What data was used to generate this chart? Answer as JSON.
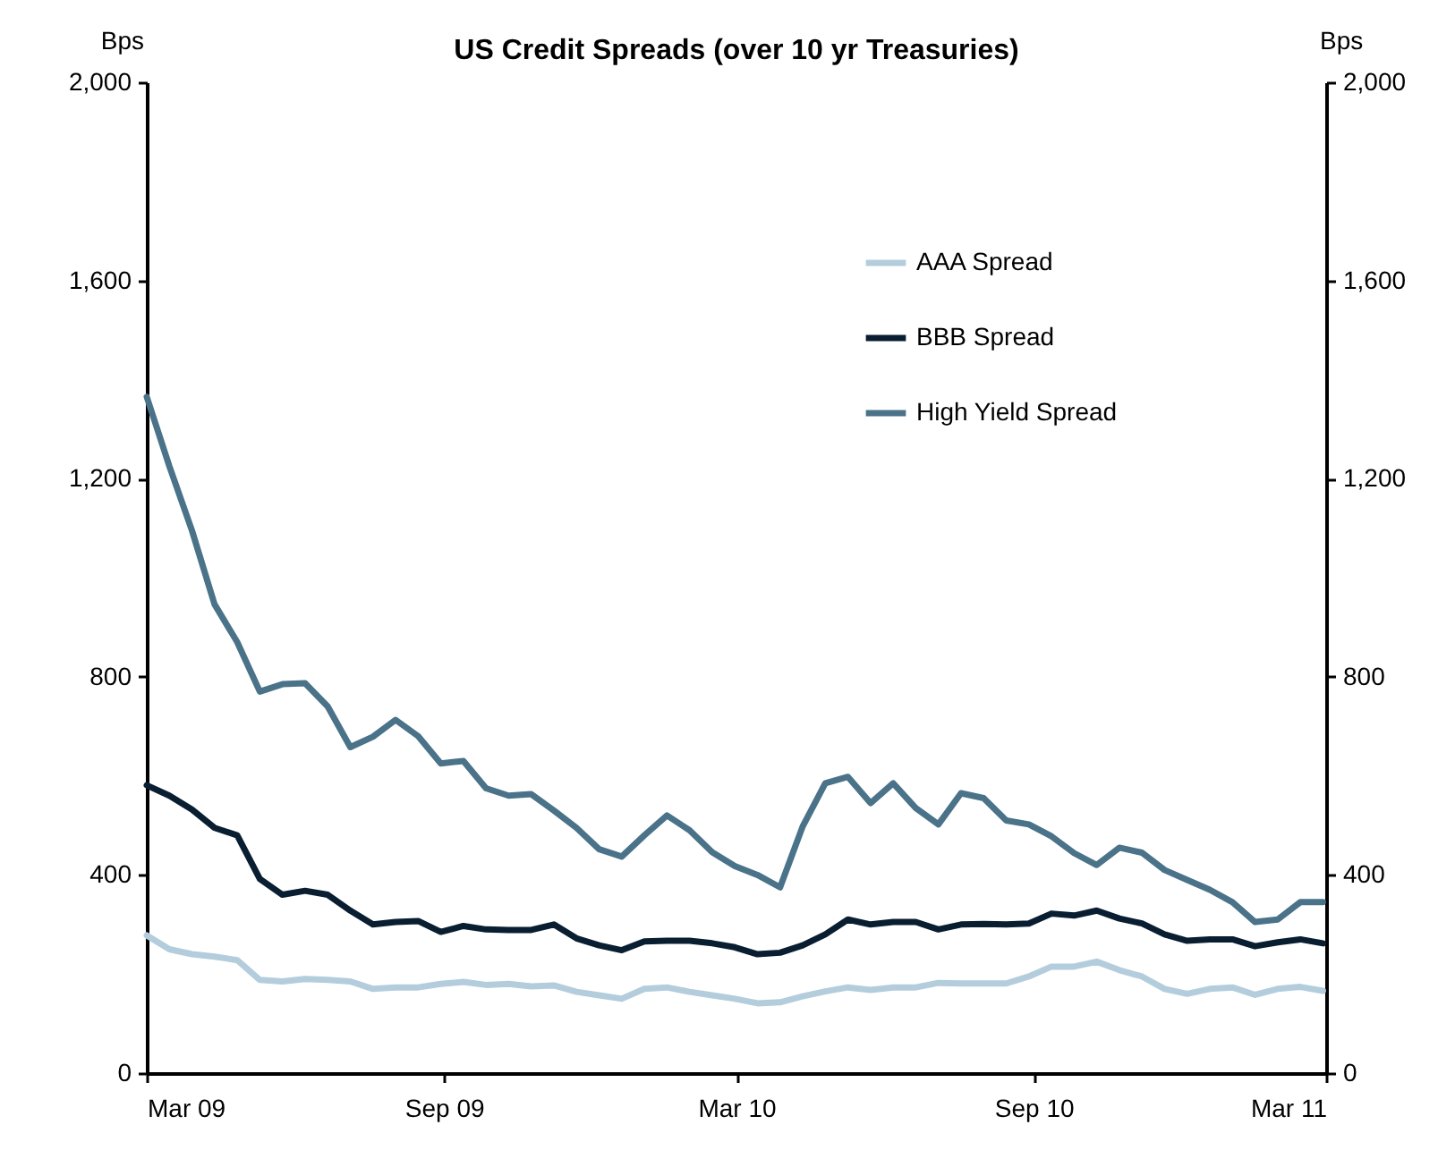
{
  "chart_data": {
    "type": "line",
    "title": "US Credit Spreads (over 10 yr Treasuries)",
    "ylabel": "Bps",
    "y2label": "Bps",
    "x": [
      "2009-03-01",
      "2009-03-15",
      "2009-03-29",
      "2009-04-12",
      "2009-04-26",
      "2009-05-10",
      "2009-05-24",
      "2009-06-07",
      "2009-06-21",
      "2009-07-05",
      "2009-07-19",
      "2009-08-02",
      "2009-08-16",
      "2009-08-30",
      "2009-09-13",
      "2009-09-27",
      "2009-10-11",
      "2009-10-25",
      "2009-11-08",
      "2009-11-22",
      "2009-12-06",
      "2009-12-20",
      "2010-01-03",
      "2010-01-17",
      "2010-01-31",
      "2010-02-14",
      "2010-02-28",
      "2010-03-14",
      "2010-03-28",
      "2010-04-11",
      "2010-04-25",
      "2010-05-09",
      "2010-05-23",
      "2010-06-06",
      "2010-06-20",
      "2010-07-04",
      "2010-07-18",
      "2010-08-01",
      "2010-08-15",
      "2010-08-29",
      "2010-09-12",
      "2010-09-26",
      "2010-10-10",
      "2010-10-24",
      "2010-11-07",
      "2010-11-21",
      "2010-12-05",
      "2010-12-19",
      "2011-01-02",
      "2011-01-16",
      "2011-01-30",
      "2011-02-13",
      "2011-02-27"
    ],
    "series": [
      {
        "name": "AAA Spread",
        "color": "#b4cddc",
        "values": [
          278,
          250,
          240,
          235,
          228,
          188,
          185,
          190,
          188,
          185,
          170,
          173,
          173,
          180,
          184,
          178,
          180,
          175,
          177,
          164,
          157,
          150,
          170,
          173,
          164,
          157,
          150,
          141,
          143,
          155,
          165,
          173,
          168,
          173,
          173,
          182,
          181,
          181,
          181,
          195,
          215,
          215,
          225,
          208,
          195,
          170,
          160,
          170,
          173,
          158,
          170,
          174,
          166
        ]
      },
      {
        "name": "BBB Spread",
        "color": "#0a1e32",
        "values": [
          581,
          560,
          532,
          495,
          480,
          392,
          360,
          368,
          360,
          328,
          300,
          305,
          307,
          285,
          297,
          290,
          289,
          289,
          300,
          272,
          258,
          248,
          266,
          267,
          267,
          262,
          254,
          240,
          243,
          258,
          280,
          310,
          300,
          305,
          305,
          290,
          300,
          301,
          300,
          302,
          322,
          318,
          328,
          312,
          302,
          280,
          267,
          270,
          270,
          256,
          264,
          270,
          262
        ]
      },
      {
        "name": "High Yield Spread",
        "color": "#4a7389",
        "values": [
          1365,
          1225,
          1095,
          946,
          870,
          770,
          785,
          787,
          740,
          658,
          679,
          713,
          680,
          625,
          630,
          575,
          560,
          563,
          530,
          495,
          452,
          437,
          480,
          520,
          490,
          446,
          418,
          400,
          375,
          498,
          585,
          598,
          545,
          585,
          535,
          502,
          565,
          555,
          510,
          502,
          478,
          444,
          420,
          455,
          445,
          410,
          390,
          370,
          345,
          305,
          310,
          345,
          345
        ]
      }
    ],
    "xlim": [
      "2009-03-01",
      "2011-03-01"
    ],
    "xticks": [
      {
        "value": "2009-03-01",
        "label": "Mar 09"
      },
      {
        "value": "2009-09-01",
        "label": "Sep 09"
      },
      {
        "value": "2010-03-01",
        "label": "Mar 10"
      },
      {
        "value": "2010-09-01",
        "label": "Sep 10"
      },
      {
        "value": "2011-03-01",
        "label": "Mar 11"
      }
    ],
    "ylim": [
      0,
      2000
    ],
    "yticks": [
      0,
      400,
      800,
      {
        "value": 1200,
        "label": "1,200"
      },
      {
        "value": 1600,
        "label": "1,600"
      },
      {
        "value": 2000,
        "label": "2,000"
      }
    ],
    "y2lim": [
      0,
      2000
    ],
    "y2ticks": [
      0,
      400,
      800,
      {
        "value": 1200,
        "label": "1,200"
      },
      {
        "value": 1600,
        "label": "1,600"
      },
      {
        "value": 2000,
        "label": "2,000"
      }
    ],
    "legend": "top right",
    "grid": false,
    "line_style": "solid",
    "marker": "none"
  }
}
